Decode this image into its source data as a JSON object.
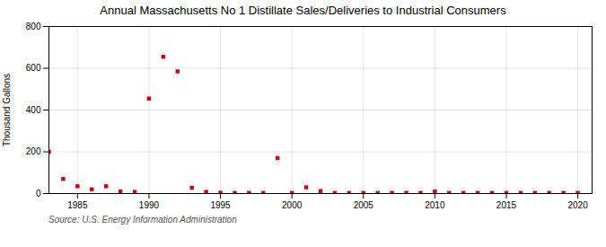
{
  "chart_data": {
    "type": "scatter",
    "title": "Annual Massachusetts No 1 Distillate Sales/Deliveries to Industrial Consumers",
    "ylabel": "Thousand Gallons",
    "source": "Source: U.S. Energy Information Administration",
    "x": [
      1983,
      1984,
      1985,
      1986,
      1987,
      1988,
      1989,
      1990,
      1991,
      1992,
      1993,
      1994,
      1995,
      1996,
      1997,
      1998,
      1999,
      2000,
      2001,
      2002,
      2003,
      2004,
      2005,
      2006,
      2007,
      2008,
      2009,
      2010,
      2011,
      2012,
      2013,
      2014,
      2015,
      2016,
      2017,
      2018,
      2019,
      2020
    ],
    "values": [
      200,
      70,
      35,
      20,
      35,
      10,
      8,
      455,
      655,
      585,
      28,
      8,
      4,
      3,
      3,
      3,
      170,
      3,
      30,
      12,
      3,
      3,
      3,
      3,
      3,
      3,
      3,
      10,
      3,
      3,
      3,
      3,
      3,
      3,
      3,
      3,
      3,
      3
    ],
    "color": "#cc0000",
    "marker": "square",
    "xlim": [
      1983,
      2021
    ],
    "ylim": [
      0,
      800
    ],
    "xticks": [
      1985,
      1990,
      1995,
      2000,
      2005,
      2010,
      2015,
      2020
    ],
    "yticks": [
      0,
      200,
      400,
      600,
      800
    ],
    "grid": true
  }
}
